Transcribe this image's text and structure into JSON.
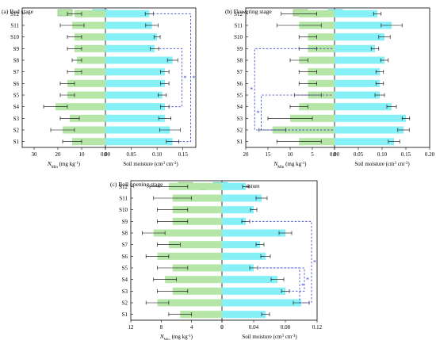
{
  "colors": {
    "nmin_fill": "#b6e6a7",
    "nmin_stroke": "#64a452",
    "soil_fill": "#86f0f7",
    "soil_stroke": "#28b8c8",
    "bracket": "#3a44c8",
    "axis": "#000000"
  },
  "chart_data": [
    {
      "type": "bar",
      "title": "(a) Bud stage",
      "categories": [
        "S1",
        "S2",
        "S3",
        "S4",
        "S5",
        "S6",
        "S7",
        "S8",
        "S9",
        "S10",
        "S11",
        "S12"
      ],
      "legend": {
        "nmin": "N",
        "nmin_sub": "Min",
        "soil": "Soil moisture",
        "placement": "top-right"
      },
      "left_axis": {
        "label": "N",
        "label_sub": "Min",
        "label_rest": " (mg kg",
        "label_sup": "-1",
        "label_end": ")",
        "ticks": [
          "30",
          "20",
          "10",
          "0"
        ],
        "tick_values": [
          30,
          20,
          10,
          0
        ],
        "range": [
          0,
          35
        ]
      },
      "right_axis": {
        "label": "Soil moisture (cm",
        "label_sup1": "3",
        "label_mid": " cm",
        "label_sup2": "-3",
        "label_end": ")",
        "ticks": [
          "0.00",
          "0.05",
          "0.10",
          "0.15"
        ],
        "tick_values": [
          0,
          0.05,
          0.1,
          0.15
        ],
        "range": [
          0,
          0.175
        ]
      },
      "series": [
        {
          "name": "N",
          "values": [
            14,
            18,
            15,
            21,
            16,
            16,
            13,
            12,
            13,
            13,
            14,
            13
          ],
          "errors": [
            4,
            5,
            4,
            5,
            3,
            3,
            3,
            2,
            3,
            3,
            5,
            3
          ]
        },
        {
          "name": "Soil moisture",
          "values": [
            0.13,
            0.125,
            0.115,
            0.115,
            0.11,
            0.115,
            0.115,
            0.13,
            0.095,
            0.1,
            0.09,
            0.085
          ],
          "errors": [
            0.012,
            0.02,
            0.012,
            0.008,
            0.008,
            0.008,
            0.008,
            0.01,
            0.008,
            0.006,
            0.012,
            0.008
          ]
        }
      ],
      "brackets": [
        {
          "from": "S1",
          "to": "S12",
          "level": 0.165,
          "label": "*"
        },
        {
          "from": "S4",
          "to": "S9",
          "level": 0.148,
          "label": "*"
        }
      ]
    },
    {
      "type": "bar",
      "title": "(b) Flowering stage",
      "categories": [
        "S1",
        "S2",
        "S3",
        "S4",
        "S5",
        "S6",
        "S7",
        "S8",
        "S9",
        "S10",
        "S11",
        "S12"
      ],
      "legend": {
        "nmin": "N",
        "nmin_sub": "Min",
        "soil": "Soil moisture",
        "placement": "top-right"
      },
      "left_axis": {
        "label": "N",
        "label_sub": "Min",
        "label_rest": " (mg kg",
        "label_sup": "-1",
        "label_end": ")",
        "ticks": [
          "20",
          "15",
          "10",
          "5",
          "0"
        ],
        "tick_values": [
          20,
          15,
          10,
          5,
          0
        ],
        "range": [
          0,
          20
        ]
      },
      "right_axis": {
        "label": "Soil moisture (cm",
        "label_sup1": "3",
        "label_mid": " cm",
        "label_sup2": "-3",
        "label_end": ")",
        "ticks": [
          "0.00",
          "0.05",
          "0.10",
          "0.15",
          "0.20"
        ],
        "tick_values": [
          0,
          0.05,
          0.1,
          0.15,
          0.2
        ],
        "range": [
          0,
          0.2
        ]
      },
      "series": [
        {
          "name": "N",
          "values": [
            8,
            14,
            10,
            8,
            6,
            6,
            6,
            8,
            6,
            6,
            8,
            8
          ],
          "errors": [
            5,
            3,
            5,
            2,
            3,
            2,
            2,
            2,
            2,
            2,
            5,
            4
          ]
        },
        {
          "name": "Soil moisture",
          "values": [
            0.125,
            0.145,
            0.15,
            0.12,
            0.095,
            0.095,
            0.095,
            0.105,
            0.085,
            0.105,
            0.12,
            0.09
          ],
          "errors": [
            0.012,
            0.012,
            0.008,
            0.01,
            0.01,
            0.008,
            0.008,
            0.008,
            0.008,
            0.012,
            0.022,
            0.008
          ]
        }
      ],
      "brackets": [
        {
          "from": "S2",
          "to": "S9",
          "level": -18,
          "label": "*"
        },
        {
          "from": "S2",
          "to": "S5",
          "level": -16.5,
          "label": "*"
        }
      ]
    },
    {
      "type": "bar",
      "title": "(c) Boll opening stage",
      "categories": [
        "S1",
        "S2",
        "S3",
        "S4",
        "S5",
        "S6",
        "S7",
        "S8",
        "S9",
        "S10",
        "S11",
        "S12"
      ],
      "legend": {
        "nmin": "N",
        "nmin_sub": "Min",
        "soil": "Soil moisture",
        "placement": "top-right"
      },
      "left_axis": {
        "label": "N",
        "label_sub": "Min",
        "label_rest": " (mg kg",
        "label_sup": "-1",
        "label_end": ")",
        "ticks": [
          "12",
          "8",
          "4",
          "0"
        ],
        "tick_values": [
          12,
          8,
          4,
          0
        ],
        "range": [
          0,
          12
        ]
      },
      "right_axis": {
        "label": "Soil moisture (cm",
        "label_sup1": "3",
        "label_mid": " cm",
        "label_sup2": "-3",
        "label_end": ")",
        "ticks": [
          "0",
          "0.04",
          "0.08",
          "0.12"
        ],
        "tick_values": [
          0,
          0.04,
          0.08,
          0.12
        ],
        "range": [
          0,
          0.12
        ]
      },
      "series": [
        {
          "name": "N",
          "values": [
            5.5,
            8.5,
            6.5,
            7.5,
            6.5,
            8.5,
            7,
            9,
            6.5,
            6.5,
            6.5,
            7
          ],
          "errors": [
            1.5,
            1.5,
            2,
            1.5,
            2,
            1.5,
            1.5,
            1.5,
            2,
            2,
            2.5,
            2.5
          ]
        },
        {
          "name": "Soil moisture",
          "values": [
            0.055,
            0.1,
            0.08,
            0.07,
            0.04,
            0.055,
            0.048,
            0.08,
            0.03,
            0.04,
            0.05,
            0.03
          ],
          "errors": [
            0.005,
            0.01,
            0.005,
            0.008,
            0.005,
            0.006,
            0.005,
            0.008,
            0.005,
            0.004,
            0.007,
            0.004
          ]
        }
      ],
      "brackets": [
        {
          "from": "S2",
          "to": "S9",
          "level": 0.113,
          "label": "*"
        },
        {
          "from": "S3",
          "to": "S5",
          "level": 0.104,
          "label": "*"
        },
        {
          "from": "S2",
          "to": "S5",
          "level": 0.098,
          "label": "*"
        }
      ]
    }
  ]
}
